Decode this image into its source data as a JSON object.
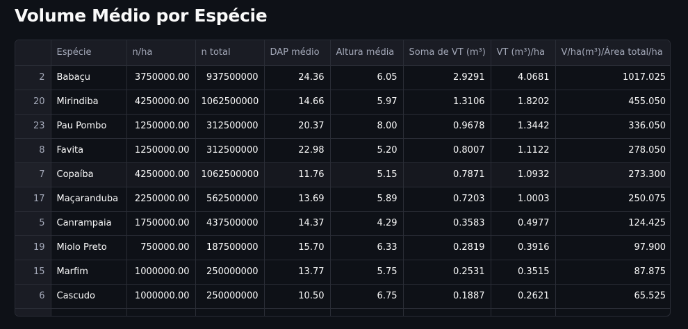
{
  "header": {
    "title": "Volume Médio por Espécie"
  },
  "table": {
    "columns": [
      "",
      "Espécie",
      "n/ha",
      "n total",
      "DAP médio",
      "Altura média",
      "Soma de VT (m³)",
      "VT (m³)/ha",
      "V/ha(m³)/Área total/ha"
    ],
    "rows": [
      [
        "2",
        "Babaçu",
        "3750000.00",
        "937500000",
        "24.36",
        "6.05",
        "2.9291",
        "4.0681",
        "1017.025"
      ],
      [
        "20",
        "Mirindiba",
        "4250000.00",
        "1062500000",
        "14.66",
        "5.97",
        "1.3106",
        "1.8202",
        "455.050"
      ],
      [
        "23",
        "Pau Pombo",
        "1250000.00",
        "312500000",
        "20.37",
        "8.00",
        "0.9678",
        "1.3442",
        "336.050"
      ],
      [
        "8",
        "Favita",
        "1250000.00",
        "312500000",
        "22.98",
        "5.20",
        "0.8007",
        "1.1122",
        "278.050"
      ],
      [
        "7",
        "Copaíba",
        "4250000.00",
        "1062500000",
        "11.76",
        "5.15",
        "0.7871",
        "1.0932",
        "273.300"
      ],
      [
        "17",
        "Maçaranduba",
        "2250000.00",
        "562500000",
        "13.69",
        "5.89",
        "0.7203",
        "1.0003",
        "250.075"
      ],
      [
        "5",
        "Canrampaia",
        "1750000.00",
        "437500000",
        "14.37",
        "4.29",
        "0.3583",
        "0.4977",
        "124.425"
      ],
      [
        "19",
        "Miolo Preto",
        "750000.00",
        "187500000",
        "15.70",
        "6.33",
        "0.2819",
        "0.3916",
        "97.900"
      ],
      [
        "15",
        "Marfim",
        "1000000.00",
        "250000000",
        "13.77",
        "5.75",
        "0.2531",
        "0.3515",
        "87.875"
      ],
      [
        "6",
        "Cascudo",
        "1000000.00",
        "250000000",
        "10.50",
        "6.75",
        "0.1887",
        "0.2621",
        "65.525"
      ]
    ]
  },
  "colors": {
    "background": "#0e1117",
    "header_bg": "#1a1c24",
    "border": "#2a2d36",
    "text": "#fafafa",
    "muted_text": "#a3a8b8"
  }
}
